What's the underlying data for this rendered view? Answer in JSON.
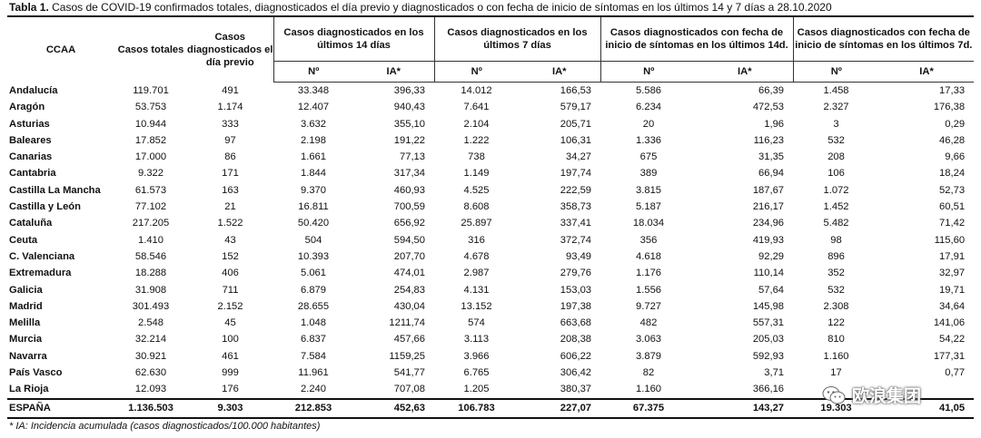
{
  "caption": {
    "label": "Tabla 1.",
    "text": " Casos de COVID-19 confirmados totales, diagnosticados el día previo y diagnosticados o con fecha de inicio de síntomas en los últimos 14 y 7 días a 28.10.2020"
  },
  "headers": {
    "ccaa": "CCAA",
    "casos_totales": "Casos totales",
    "casos_dia_previo": "Casos diagnosticados el día previo",
    "grupo_14": "Casos diagnosticados en los últimos 14 días",
    "grupo_7": "Casos diagnosticados en los últimos 7 días",
    "grupo_sint_14": "Casos diagnosticados con fecha de inicio de síntomas en los últimos 14d.",
    "grupo_sint_7": "Casos diagnosticados con fecha de inicio de síntomas en los últimos 7d.",
    "sub_n": "Nº",
    "sub_ia": "IA*"
  },
  "rows": [
    [
      "Andalucía",
      "119.701",
      "491",
      "33.348",
      "396,33",
      "14.012",
      "166,53",
      "5.586",
      "66,39",
      "1.458",
      "17,33"
    ],
    [
      "Aragón",
      "53.753",
      "1.174",
      "12.407",
      "940,43",
      "7.641",
      "579,17",
      "6.234",
      "472,53",
      "2.327",
      "176,38"
    ],
    [
      "Asturias",
      "10.944",
      "333",
      "3.632",
      "355,10",
      "2.104",
      "205,71",
      "20",
      "1,96",
      "3",
      "0,29"
    ],
    [
      "Baleares",
      "17.852",
      "97",
      "2.198",
      "191,22",
      "1.222",
      "106,31",
      "1.336",
      "116,23",
      "532",
      "46,28"
    ],
    [
      "Canarias",
      "17.000",
      "86",
      "1.661",
      "77,13",
      "738",
      "34,27",
      "675",
      "31,35",
      "208",
      "9,66"
    ],
    [
      "Cantabria",
      "9.322",
      "171",
      "1.844",
      "317,34",
      "1.149",
      "197,74",
      "389",
      "66,94",
      "106",
      "18,24"
    ],
    [
      "Castilla La Mancha",
      "61.573",
      "163",
      "9.370",
      "460,93",
      "4.525",
      "222,59",
      "3.815",
      "187,67",
      "1.072",
      "52,73"
    ],
    [
      "Castilla y León",
      "77.102",
      "21",
      "16.811",
      "700,59",
      "8.608",
      "358,73",
      "5.187",
      "216,17",
      "1.452",
      "60,51"
    ],
    [
      "Cataluña",
      "217.205",
      "1.522",
      "50.420",
      "656,92",
      "25.897",
      "337,41",
      "18.034",
      "234,96",
      "5.482",
      "71,42"
    ],
    [
      "Ceuta",
      "1.410",
      "43",
      "504",
      "594,50",
      "316",
      "372,74",
      "356",
      "419,93",
      "98",
      "115,60"
    ],
    [
      "C. Valenciana",
      "58.546",
      "152",
      "10.393",
      "207,70",
      "4.678",
      "93,49",
      "4.618",
      "92,29",
      "896",
      "17,91"
    ],
    [
      "Extremadura",
      "18.288",
      "406",
      "5.061",
      "474,01",
      "2.987",
      "279,76",
      "1.176",
      "110,14",
      "352",
      "32,97"
    ],
    [
      "Galicia",
      "31.908",
      "711",
      "6.879",
      "254,83",
      "4.131",
      "153,03",
      "1.556",
      "57,64",
      "532",
      "19,71"
    ],
    [
      "Madrid",
      "301.493",
      "2.152",
      "28.655",
      "430,04",
      "13.152",
      "197,38",
      "9.727",
      "145,98",
      "2.308",
      "34,64"
    ],
    [
      "Melilla",
      "2.548",
      "45",
      "1.048",
      "1211,74",
      "574",
      "663,68",
      "482",
      "557,31",
      "122",
      "141,06"
    ],
    [
      "Murcia",
      "32.214",
      "100",
      "6.837",
      "457,66",
      "3.113",
      "208,38",
      "3.063",
      "205,03",
      "810",
      "54,22"
    ],
    [
      "Navarra",
      "30.921",
      "461",
      "7.584",
      "1159,25",
      "3.966",
      "606,22",
      "3.879",
      "592,93",
      "1.160",
      "177,31"
    ],
    [
      "País Vasco",
      "62.630",
      "999",
      "11.961",
      "541,77",
      "6.765",
      "306,42",
      "82",
      "3,71",
      "17",
      "0,77"
    ],
    [
      "La Rioja",
      "12.093",
      "176",
      "2.240",
      "707,08",
      "1.205",
      "380,37",
      "1.160",
      "366,16",
      "",
      ""
    ]
  ],
  "total": [
    "ESPAÑA",
    "1.136.503",
    "9.303",
    "212.853",
    "452,63",
    "106.783",
    "227,07",
    "67.375",
    "143,27",
    "19.303",
    "41,05"
  ],
  "note": "* IA: Incidencia acumulada (casos diagnosticados/100.000 habitantes)",
  "watermark": {
    "text": "欧浪集团",
    "icon": "wechat-icon"
  }
}
